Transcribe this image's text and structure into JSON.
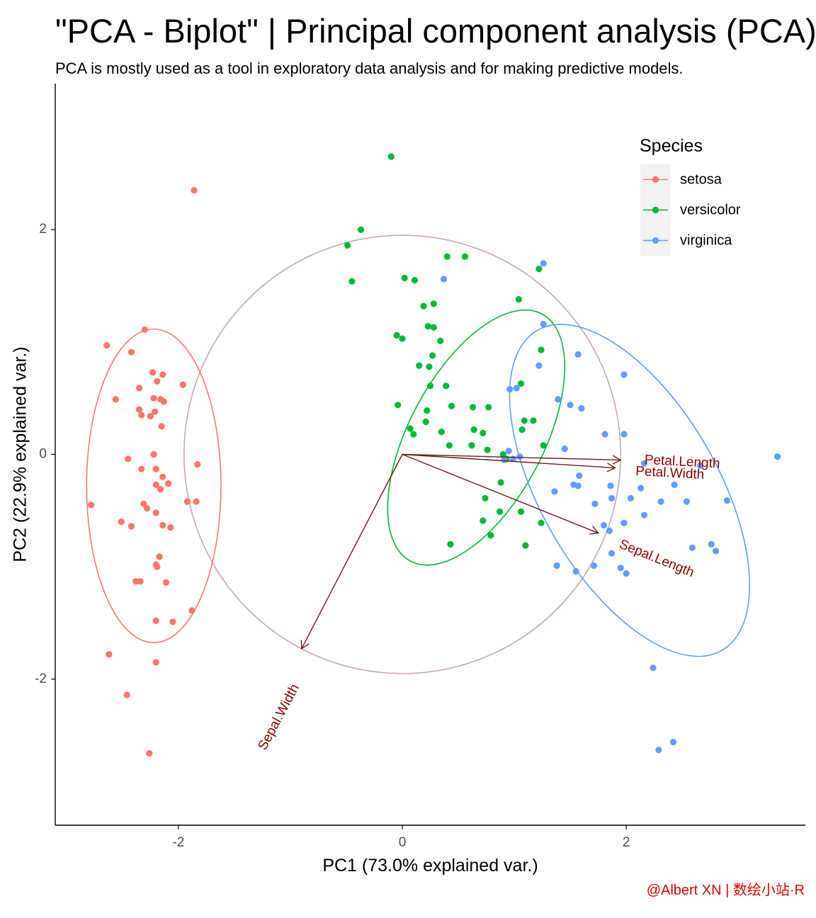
{
  "chart_data": {
    "type": "scatter",
    "title": "\"PCA - Biplot\" | Principal component analysis (PCA)",
    "subtitle": "PCA is mostly used as a tool in exploratory data analysis and for making predictive models.",
    "xlabel": "PC1 (73.0% explained var.)",
    "ylabel": "PC2 (22.9% explained var.)",
    "xlim": [
      -3.1,
      3.6
    ],
    "ylim": [
      -3.3,
      3.3
    ],
    "xticks": [
      -2,
      0,
      2
    ],
    "yticks": [
      -2,
      0,
      2
    ],
    "x_tick_labels": [
      "-2",
      "0",
      "2"
    ],
    "y_tick_labels": [
      "-2",
      "0",
      "2"
    ],
    "grid": false,
    "legend": {
      "title": "Species",
      "position": "top-right",
      "entries": [
        "setosa",
        "versicolor",
        "virginica"
      ]
    },
    "series": [
      {
        "name": "setosa",
        "color": "#F8766D",
        "ellipse": {
          "center": [
            -2.22,
            -0.28
          ],
          "rx": 0.6,
          "ry": 1.4
        },
        "points": [
          [
            -1.86,
            2.35
          ],
          [
            -2.3,
            1.11
          ],
          [
            -2.64,
            0.97
          ],
          [
            -2.42,
            0.91
          ],
          [
            -2.23,
            0.73
          ],
          [
            -2.14,
            0.71
          ],
          [
            -2.19,
            0.65
          ],
          [
            -1.96,
            0.62
          ],
          [
            -2.35,
            0.59
          ],
          [
            -2.56,
            0.49
          ],
          [
            -2.22,
            0.5
          ],
          [
            -2.16,
            0.49
          ],
          [
            -2.13,
            0.47
          ],
          [
            -2.35,
            0.4
          ],
          [
            -2.33,
            0.35
          ],
          [
            -2.21,
            0.38
          ],
          [
            -2.25,
            0.34
          ],
          [
            -2.15,
            0.25
          ],
          [
            -2.45,
            -0.04
          ],
          [
            -2.22,
            0.0
          ],
          [
            -2.2,
            -0.13
          ],
          [
            -2.33,
            -0.13
          ],
          [
            -1.83,
            -0.09
          ],
          [
            -2.14,
            -0.2
          ],
          [
            -2.2,
            -0.27
          ],
          [
            -2.09,
            -0.26
          ],
          [
            -2.16,
            -0.31
          ],
          [
            -2.78,
            -0.45
          ],
          [
            -2.31,
            -0.44
          ],
          [
            -2.28,
            -0.48
          ],
          [
            -1.92,
            -0.42
          ],
          [
            -1.84,
            -0.42
          ],
          [
            -2.2,
            -0.52
          ],
          [
            -2.51,
            -0.6
          ],
          [
            -2.14,
            -0.63
          ],
          [
            -2.42,
            -0.64
          ],
          [
            -2.07,
            -0.65
          ],
          [
            -2.17,
            -0.91
          ],
          [
            -2.19,
            -1.0
          ],
          [
            -2.38,
            -1.13
          ],
          [
            -2.34,
            -1.13
          ],
          [
            -2.2,
            -0.98
          ],
          [
            -2.11,
            -1.14
          ],
          [
            -1.88,
            -1.39
          ],
          [
            -2.05,
            -1.49
          ],
          [
            -2.2,
            -1.48
          ],
          [
            -2.62,
            -1.78
          ],
          [
            -2.2,
            -1.85
          ],
          [
            -2.46,
            -2.14
          ],
          [
            -2.26,
            -2.66
          ]
        ]
      },
      {
        "name": "versicolor",
        "color": "#00BA38",
        "ellipse": {
          "center": [
            0.66,
            0.15
          ],
          "rx": 1.25,
          "ry": 0.6,
          "rotation": -62
        },
        "points": [
          [
            -0.1,
            2.65
          ],
          [
            -0.37,
            2.0
          ],
          [
            -0.49,
            1.86
          ],
          [
            0.4,
            1.76
          ],
          [
            0.56,
            1.76
          ],
          [
            -0.45,
            1.54
          ],
          [
            0.02,
            1.57
          ],
          [
            0.11,
            1.55
          ],
          [
            1.22,
            1.65
          ],
          [
            1.04,
            1.38
          ],
          [
            0.19,
            1.32
          ],
          [
            0.28,
            1.34
          ],
          [
            0.28,
            1.13
          ],
          [
            0.23,
            1.14
          ],
          [
            -0.05,
            1.06
          ],
          [
            0.0,
            1.03
          ],
          [
            0.34,
            1.01
          ],
          [
            0.27,
            0.88
          ],
          [
            1.24,
            0.93
          ],
          [
            0.15,
            0.79
          ],
          [
            0.24,
            0.78
          ],
          [
            1.06,
            0.63
          ],
          [
            0.25,
            0.61
          ],
          [
            0.39,
            0.61
          ],
          [
            -0.04,
            0.44
          ],
          [
            0.22,
            0.39
          ],
          [
            0.44,
            0.43
          ],
          [
            0.63,
            0.42
          ],
          [
            0.77,
            0.42
          ],
          [
            1.17,
            0.3
          ],
          [
            0.21,
            0.29
          ],
          [
            1.09,
            0.3
          ],
          [
            0.07,
            0.23
          ],
          [
            0.1,
            0.18
          ],
          [
            0.35,
            0.2
          ],
          [
            0.64,
            0.22
          ],
          [
            0.72,
            0.19
          ],
          [
            1.07,
            0.22
          ],
          [
            1.26,
            0.08
          ],
          [
            0.42,
            0.08
          ],
          [
            0.62,
            0.08
          ],
          [
            0.76,
            0.04
          ],
          [
            0.9,
            0.0
          ],
          [
            0.93,
            -0.04
          ],
          [
            0.88,
            -0.25
          ],
          [
            0.74,
            -0.39
          ],
          [
            0.87,
            -0.51
          ],
          [
            1.06,
            -0.51
          ],
          [
            0.72,
            -0.59
          ],
          [
            0.79,
            -0.72
          ],
          [
            1.24,
            -0.61
          ],
          [
            0.43,
            -0.8
          ],
          [
            1.1,
            -0.81
          ]
        ]
      },
      {
        "name": "virginica",
        "color": "#619CFF",
        "ellipse": {
          "center": [
            2.03,
            -0.32
          ],
          "rx": 1.65,
          "ry": 0.79,
          "rotation": 60
        },
        "points": [
          [
            1.26,
            1.7
          ],
          [
            0.37,
            1.56
          ],
          [
            1.26,
            1.16
          ],
          [
            1.57,
            0.89
          ],
          [
            1.22,
            0.79
          ],
          [
            1.98,
            0.71
          ],
          [
            1.02,
            0.59
          ],
          [
            0.96,
            0.58
          ],
          [
            1.39,
            0.49
          ],
          [
            1.5,
            0.44
          ],
          [
            1.6,
            0.41
          ],
          [
            1.81,
            0.18
          ],
          [
            1.98,
            0.18
          ],
          [
            1.45,
            0.05
          ],
          [
            1.05,
            -0.02
          ],
          [
            0.91,
            -0.05
          ],
          [
            0.95,
            0.03
          ],
          [
            0.99,
            -0.04
          ],
          [
            1.53,
            -0.27
          ],
          [
            1.57,
            -0.28
          ],
          [
            1.86,
            -0.28
          ],
          [
            2.43,
            -0.27
          ],
          [
            1.36,
            -0.33
          ],
          [
            1.87,
            -0.39
          ],
          [
            2.04,
            -0.39
          ],
          [
            2.31,
            -0.42
          ],
          [
            2.9,
            -0.41
          ],
          [
            2.16,
            -0.54
          ],
          [
            1.98,
            -0.61
          ],
          [
            1.85,
            -0.68
          ],
          [
            2.76,
            -0.8
          ],
          [
            2.8,
            -0.86
          ],
          [
            1.87,
            -0.88
          ],
          [
            1.71,
            -0.99
          ],
          [
            1.55,
            -1.04
          ],
          [
            1.38,
            -0.99
          ],
          [
            1.95,
            -1.01
          ],
          [
            2.0,
            -1.06
          ],
          [
            2.24,
            -1.9
          ],
          [
            2.29,
            -2.63
          ],
          [
            2.42,
            -2.56
          ],
          [
            3.35,
            -0.02
          ],
          [
            2.54,
            -0.42
          ],
          [
            1.58,
            -0.19
          ],
          [
            2.16,
            -0.08
          ],
          [
            2.66,
            -0.1
          ],
          [
            1.8,
            -0.63
          ],
          [
            2.59,
            -0.83
          ],
          [
            1.72,
            -0.44
          ],
          [
            2.13,
            -0.3
          ]
        ]
      }
    ],
    "circle": {
      "center": [
        0,
        0
      ],
      "radius": 1.95,
      "color": "#C9A6B1"
    },
    "arrows": [
      {
        "name": "Petal.Length",
        "end": [
          1.95,
          -0.05
        ],
        "label_at": [
          2.5,
          -0.07
        ],
        "label_rotation": 3
      },
      {
        "name": "Petal.Width",
        "end": [
          1.9,
          -0.12
        ],
        "label_at": [
          2.39,
          -0.17
        ],
        "label_rotation": 3
      },
      {
        "name": "Sepal.Length",
        "end": [
          1.75,
          -0.7
        ],
        "label_at": [
          2.27,
          -0.93
        ],
        "label_rotation": 22
      },
      {
        "name": "Sepal.Width",
        "end": [
          -0.9,
          -1.73
        ],
        "label_at": [
          -1.1,
          -2.34
        ],
        "label_rotation": -62
      }
    ],
    "arrow_color": "#6B1D1D",
    "arrow_label_color": "#8B0000"
  },
  "credit": "@Albert XN | 数绘小站·R"
}
